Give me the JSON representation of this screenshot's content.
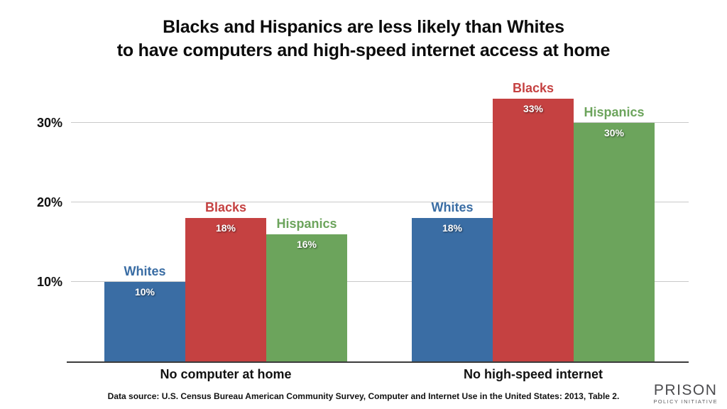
{
  "title": {
    "line1": "Blacks and Hispanics are less likely than Whites",
    "line2": "to have computers and high-speed internet access at home"
  },
  "chart_data": {
    "type": "bar",
    "title": "Blacks and Hispanics are less likely than Whites to have computers and high-speed internet access at home",
    "categories": [
      "No computer at home",
      "No high-speed internet"
    ],
    "series": [
      {
        "name": "Whites",
        "color": "#3A6DA4",
        "values": [
          10,
          18
        ]
      },
      {
        "name": "Blacks",
        "color": "#C54141",
        "values": [
          18,
          33
        ]
      },
      {
        "name": "Hispanics",
        "color": "#6CA45C",
        "values": [
          16,
          30
        ]
      }
    ],
    "value_labels": [
      [
        "10%",
        "18%"
      ],
      [
        "18%",
        "33%"
      ],
      [
        "16%",
        "30%"
      ]
    ],
    "ylabel": "",
    "xlabel": "",
    "yticks": [
      10,
      20,
      30
    ],
    "ytick_labels": [
      "10%",
      "20%",
      "30%"
    ],
    "ylim": [
      0,
      35
    ],
    "grid": true,
    "legend": "none",
    "bar_label_position": "series name above bar, value inside bar top"
  },
  "source": "Data source: U.S. Census Bureau American Community Survey, Computer and Internet Use in the United States: 2013, Table 2.",
  "logo": {
    "line1": "PRISON",
    "line2": "POLICY INITIATIVE"
  },
  "colors": {
    "whites": "#3A6DA4",
    "blacks": "#C54141",
    "hispanics": "#6CA45C",
    "gridline": "#c9c9c9",
    "baseline": "#3b3b3b",
    "text": "#111111",
    "logo_gray": "#4b4b4e"
  }
}
